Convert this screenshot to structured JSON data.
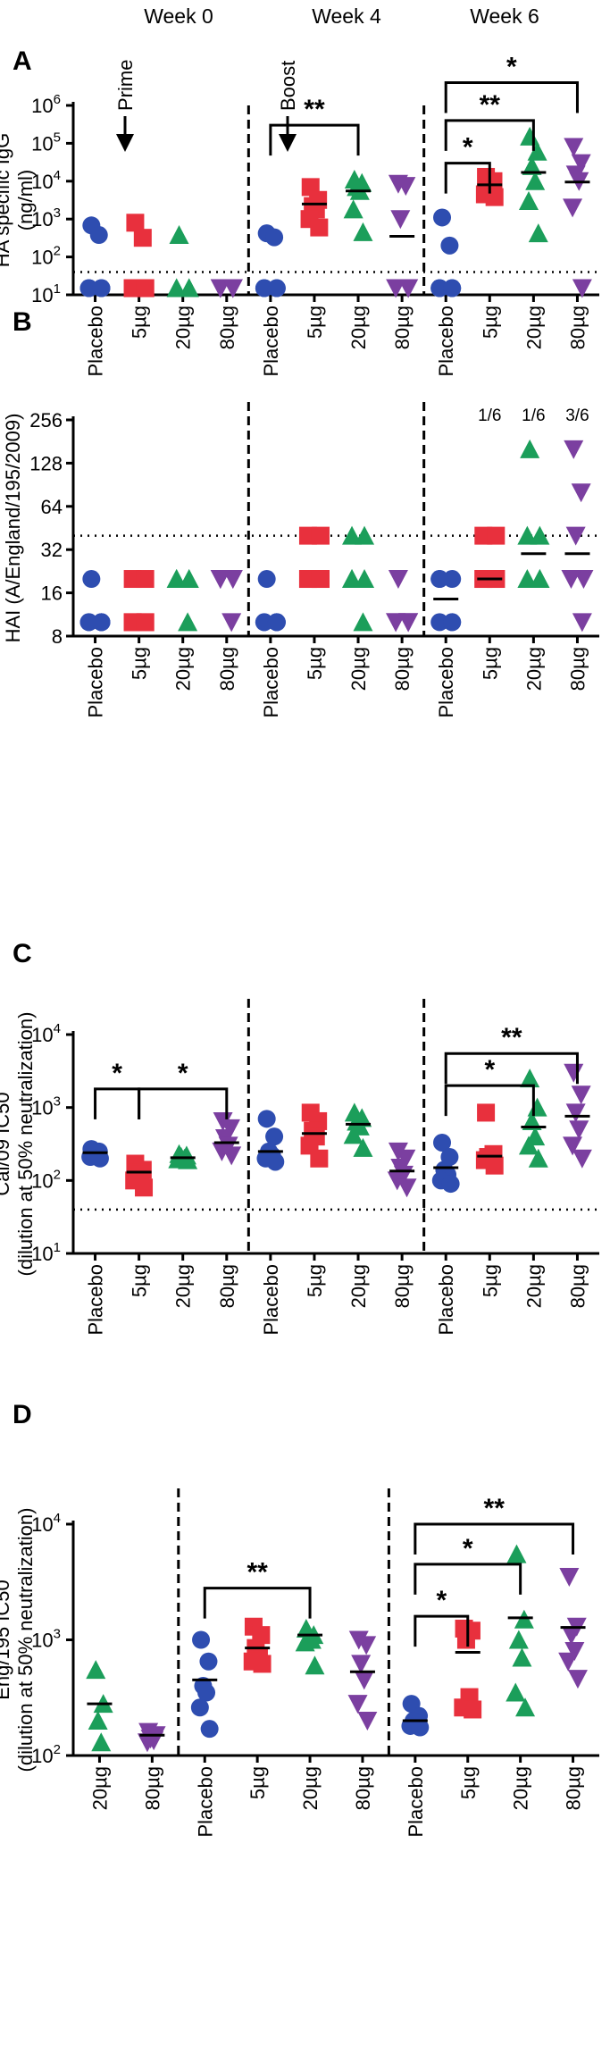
{
  "colors": {
    "placebo": "#2e4db0",
    "d5": "#e8303d",
    "d20": "#1b9e5a",
    "d80": "#7b3fa0"
  },
  "chart_data": [
    {
      "panel": "A",
      "type": "scatter",
      "yscale": "log10",
      "ylim": [
        10,
        1000000
      ],
      "ylabel": [
        "HA specific IgG",
        "(ng/ml)"
      ],
      "yticks": [
        {
          "v": 10,
          "m": "10",
          "e": "1"
        },
        {
          "v": 100,
          "m": "10",
          "e": "2"
        },
        {
          "v": 1000,
          "m": "10",
          "e": "3"
        },
        {
          "v": 10000,
          "m": "10",
          "e": "4"
        },
        {
          "v": 100000,
          "m": "10",
          "e": "5"
        },
        {
          "v": 1000000,
          "m": "10",
          "e": "6"
        }
      ],
      "week_labels": [
        "Week 0",
        "Week 4",
        "Week 6"
      ],
      "arrows": [
        "Prime",
        "Boost"
      ],
      "threshold": 40,
      "categories": [
        "Placebo",
        "5µg",
        "20µg",
        "80µg",
        "Placebo",
        "5µg",
        "20µg",
        "80µg",
        "Placebo",
        "5µg",
        "20µg",
        "80µg"
      ],
      "group_types": [
        "placebo",
        "d5",
        "d20",
        "d80",
        "placebo",
        "d5",
        "d20",
        "d80",
        "placebo",
        "d5",
        "d20",
        "d80"
      ],
      "dividers_after": [
        3,
        7
      ],
      "points": [
        [
          680,
          380,
          15,
          15,
          15,
          15
        ],
        [
          800,
          320,
          15,
          15,
          15,
          15
        ],
        [
          380,
          15,
          15,
          15,
          15,
          15
        ],
        [
          15,
          15,
          15,
          15,
          15,
          15
        ],
        [
          420,
          330,
          15,
          15,
          15,
          15
        ],
        [
          7000,
          3200,
          2200,
          1800,
          1000,
          600
        ],
        [
          11000,
          9000,
          7000,
          5500,
          1800,
          450
        ],
        [
          8500,
          7500,
          1000,
          15,
          15,
          15
        ],
        [
          1100,
          200,
          15,
          15,
          15,
          15
        ],
        [
          13000,
          10000,
          6000,
          5000,
          4500,
          3800
        ],
        [
          150000,
          60000,
          25000,
          10000,
          3000,
          420
        ],
        [
          80000,
          30000,
          15000,
          10000,
          2000,
          15
        ]
      ],
      "means": [
        null,
        null,
        null,
        null,
        null,
        2500,
        5500,
        350,
        null,
        8000,
        17000,
        9500
      ],
      "brackets": [
        {
          "from": 4,
          "to": 6,
          "label": "**",
          "y": 300000
        },
        {
          "from": 8,
          "to": 9,
          "label": "*",
          "y": 30000
        },
        {
          "from": 8,
          "to": 10,
          "label": "**",
          "y": 400000
        },
        {
          "from": 8,
          "to": 11,
          "label": "*",
          "y": 4000000
        }
      ]
    },
    {
      "panel": "B",
      "type": "scatter",
      "yscale": "log2",
      "ylim": [
        8,
        256
      ],
      "ylabel": [
        "HAI (A/England/195/2009)"
      ],
      "yticks": [
        {
          "v": 8,
          "t": "8"
        },
        {
          "v": 16,
          "t": "16"
        },
        {
          "v": 32,
          "t": "32"
        },
        {
          "v": 64,
          "t": "64"
        },
        {
          "v": 128,
          "t": "128"
        },
        {
          "v": 256,
          "t": "256"
        }
      ],
      "threshold": 40,
      "categories": [
        "Placebo",
        "5µg",
        "20µg",
        "80µg",
        "Placebo",
        "5µg",
        "20µg",
        "80µg",
        "Placebo",
        "5µg",
        "20µg",
        "80µg"
      ],
      "group_types": [
        "placebo",
        "d5",
        "d20",
        "d80",
        "placebo",
        "d5",
        "d20",
        "d80",
        "placebo",
        "d5",
        "d20",
        "d80"
      ],
      "dividers_after": [
        3,
        7
      ],
      "points": [
        [
          20,
          10,
          10,
          10,
          10,
          10
        ],
        [
          20,
          20,
          10,
          10,
          10,
          10
        ],
        [
          20,
          20,
          20,
          20,
          20,
          10
        ],
        [
          20,
          20,
          20,
          20,
          20,
          10
        ],
        [
          20,
          10,
          10,
          10,
          10,
          10
        ],
        [
          40,
          40,
          20,
          20,
          20,
          20
        ],
        [
          40,
          40,
          20,
          20,
          20,
          10
        ],
        [
          20,
          10,
          10,
          10,
          10,
          10
        ],
        [
          20,
          20,
          20,
          10,
          10,
          10
        ],
        [
          40,
          40,
          20,
          20,
          20,
          20
        ],
        [
          160,
          40,
          40,
          20,
          20,
          20
        ],
        [
          160,
          80,
          40,
          20,
          20,
          10
        ]
      ],
      "means": [
        null,
        null,
        null,
        null,
        null,
        null,
        null,
        null,
        14.5,
        20,
        30,
        null
      ],
      "mean_extra": [
        {
          "g": 11,
          "v": 30
        }
      ],
      "ratios": [
        {
          "g": 9,
          "t": "1/6"
        },
        {
          "g": 10,
          "t": "1/6"
        },
        {
          "g": 11,
          "t": "3/6"
        }
      ]
    },
    {
      "panel": "C",
      "type": "scatter",
      "yscale": "log10",
      "ylim": [
        10,
        10000
      ],
      "ylabel": [
        "Cal/09 IC50",
        "(dilution at 50% neutralization)"
      ],
      "yticks": [
        {
          "v": 10,
          "m": "10",
          "e": "1"
        },
        {
          "v": 100,
          "m": "10",
          "e": "2"
        },
        {
          "v": 1000,
          "m": "10",
          "e": "3"
        },
        {
          "v": 10000,
          "m": "10",
          "e": "4"
        }
      ],
      "threshold": 40,
      "categories": [
        "Placebo",
        "5µg",
        "20µg",
        "80µg",
        "Placebo",
        "5µg",
        "20µg",
        "80µg",
        "Placebo",
        "5µg",
        "20µg",
        "80µg"
      ],
      "group_types": [
        "placebo",
        "d5",
        "d20",
        "d80",
        "placebo",
        "d5",
        "d20",
        "d80",
        "placebo",
        "d5",
        "d20",
        "d80"
      ],
      "dividers_after": [
        3,
        7
      ],
      "points": [
        [
          270,
          250,
          240,
          230,
          210,
          200
        ],
        [
          170,
          140,
          130,
          120,
          100,
          80
        ],
        [
          230,
          220,
          210,
          200,
          195,
          190
        ],
        [
          650,
          520,
          380,
          300,
          250,
          220
        ],
        [
          700,
          400,
          250,
          220,
          200,
          180
        ],
        [
          850,
          650,
          480,
          400,
          300,
          200
        ],
        [
          850,
          720,
          640,
          550,
          420,
          280
        ],
        [
          250,
          200,
          150,
          120,
          100,
          80
        ],
        [
          330,
          210,
          140,
          120,
          100,
          90
        ],
        [
          850,
          230,
          210,
          200,
          190,
          160
        ],
        [
          2500,
          1000,
          650,
          400,
          300,
          200
        ],
        [
          3000,
          1500,
          850,
          500,
          300,
          200
        ]
      ],
      "means": [
        240,
        130,
        205,
        330,
        250,
        440,
        590,
        135,
        150,
        215,
        540,
        760
      ],
      "brackets": [
        {
          "from": 0,
          "to": 1,
          "label": "*",
          "y": 1800
        },
        {
          "from": 1,
          "to": 3,
          "label": "*",
          "y": 1800
        },
        {
          "from": 8,
          "to": 10,
          "label": "*",
          "y": 2000
        },
        {
          "from": 8,
          "to": 11,
          "label": "**",
          "y": 5500
        }
      ]
    },
    {
      "panel": "D",
      "type": "scatter",
      "yscale": "log10",
      "ylim": [
        100,
        10000
      ],
      "ylabel": [
        "Eng/195 IC50",
        "(dilution at 50% neutralization)"
      ],
      "yticks": [
        {
          "v": 100,
          "m": "10",
          "e": "2"
        },
        {
          "v": 1000,
          "m": "10",
          "e": "3"
        },
        {
          "v": 10000,
          "m": "10",
          "e": "4"
        }
      ],
      "categories": [
        "20µg",
        "80µg",
        "Placebo",
        "5µg",
        "20µg",
        "80µg",
        "Placebo",
        "5µg",
        "20µg",
        "80µg"
      ],
      "group_types": [
        "d20",
        "d80",
        "placebo",
        "d5",
        "d20",
        "d80",
        "placebo",
        "d5",
        "d20",
        "d80"
      ],
      "dividers_after": [
        1,
        5
      ],
      "points": [
        [
          550,
          280,
          200,
          130
        ],
        [
          160,
          150,
          140,
          135,
          130
        ],
        [
          1000,
          650,
          400,
          350,
          260,
          170
        ],
        [
          1300,
          1100,
          850,
          700,
          650,
          620
        ],
        [
          1250,
          1100,
          1050,
          1000,
          950,
          600
        ],
        [
          1000,
          900,
          620,
          450,
          280,
          200
        ],
        [
          280,
          220,
          200,
          190,
          180,
          175
        ],
        [
          1250,
          1200,
          1000,
          320,
          260,
          250
        ],
        [
          5500,
          1500,
          1000,
          700,
          350,
          260
        ],
        [
          3500,
          1300,
          1100,
          800,
          650,
          460
        ]
      ],
      "means": [
        280,
        150,
        450,
        850,
        1100,
        530,
        200,
        780,
        1550,
        1280
      ],
      "brackets": [
        {
          "from": 2,
          "to": 4,
          "label": "**",
          "y": 2800
        },
        {
          "from": 6,
          "to": 7,
          "label": "*",
          "y": 1600
        },
        {
          "from": 6,
          "to": 8,
          "label": "*",
          "y": 4500
        },
        {
          "from": 6,
          "to": 9,
          "label": "**",
          "y": 10000
        }
      ]
    }
  ]
}
